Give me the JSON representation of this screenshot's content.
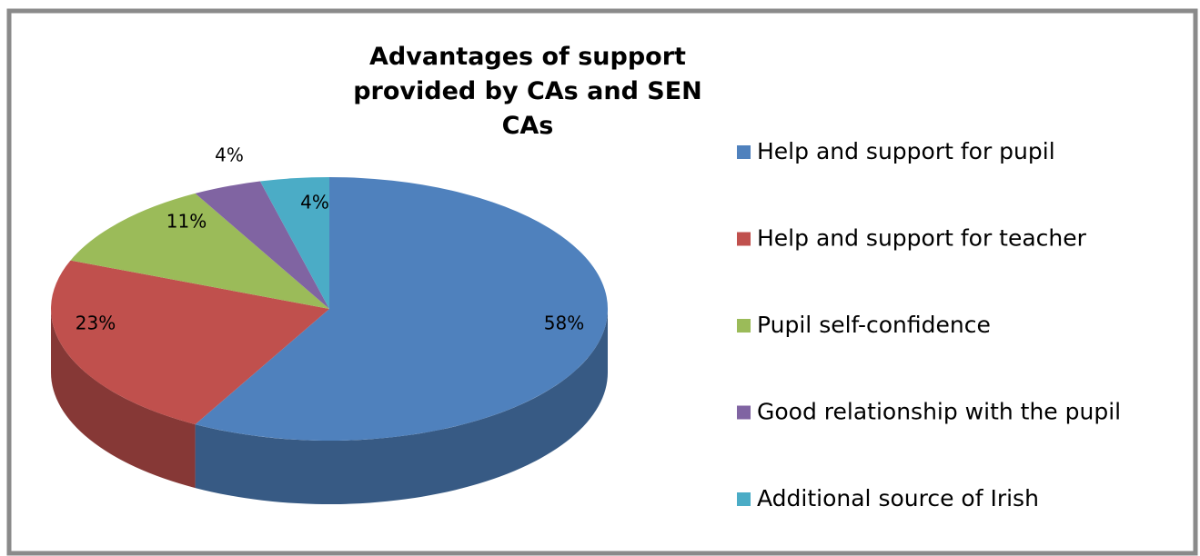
{
  "chart_data": {
    "type": "pie",
    "title": "Advantages of support provided by CAs and SEN CAs",
    "categories": [
      "Help and support for pupil",
      "Help and support for teacher",
      "Pupil self-confidence",
      "Good relationship with the pupil",
      "Additional source of Irish"
    ],
    "values": [
      58,
      23,
      11,
      4,
      4
    ],
    "value_labels": [
      "58%",
      "23%",
      "11%",
      "4%",
      "4%"
    ],
    "colors": [
      "#4f81bd",
      "#c0504d",
      "#9bbb59",
      "#8064a2",
      "#4bacc6"
    ],
    "legend": "right"
  }
}
